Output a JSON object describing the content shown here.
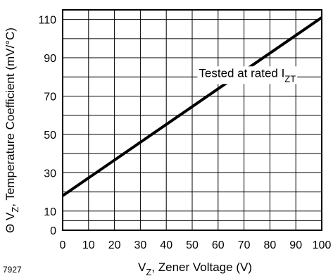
{
  "chart_data": {
    "type": "line",
    "title": "",
    "xlabel": {
      "prefix": "V",
      "subscript": "Z",
      "suffix": ", Zener Voltage (V)"
    },
    "ylabel": {
      "prefix": "Θ V",
      "subscript": "Z",
      "suffix": ", Temperature Coefficient (mV/°C)"
    },
    "xlim": [
      0,
      100
    ],
    "ylim": [
      0,
      115
    ],
    "x_ticks": [
      0,
      10,
      20,
      30,
      40,
      50,
      60,
      70,
      80,
      90,
      100
    ],
    "y_ticks": [
      0,
      10,
      30,
      50,
      70,
      90,
      110
    ],
    "x_grid": [
      0,
      10,
      20,
      30,
      40,
      50,
      60,
      70,
      80,
      90,
      100
    ],
    "y_grid": [
      5,
      10,
      20,
      30,
      40,
      50,
      60,
      70,
      80,
      90,
      100,
      110
    ],
    "grid": true,
    "series": [
      {
        "x": [
          0,
          100
        ],
        "y": [
          18,
          111
        ]
      }
    ],
    "annotation": {
      "prefix": "Tested at rated I",
      "subscript": "ZT",
      "at": [
        90,
        80
      ]
    }
  },
  "figure_number": "7927",
  "colors": {
    "line": "#000000",
    "grid": "#000000",
    "background": "#ffffff"
  }
}
